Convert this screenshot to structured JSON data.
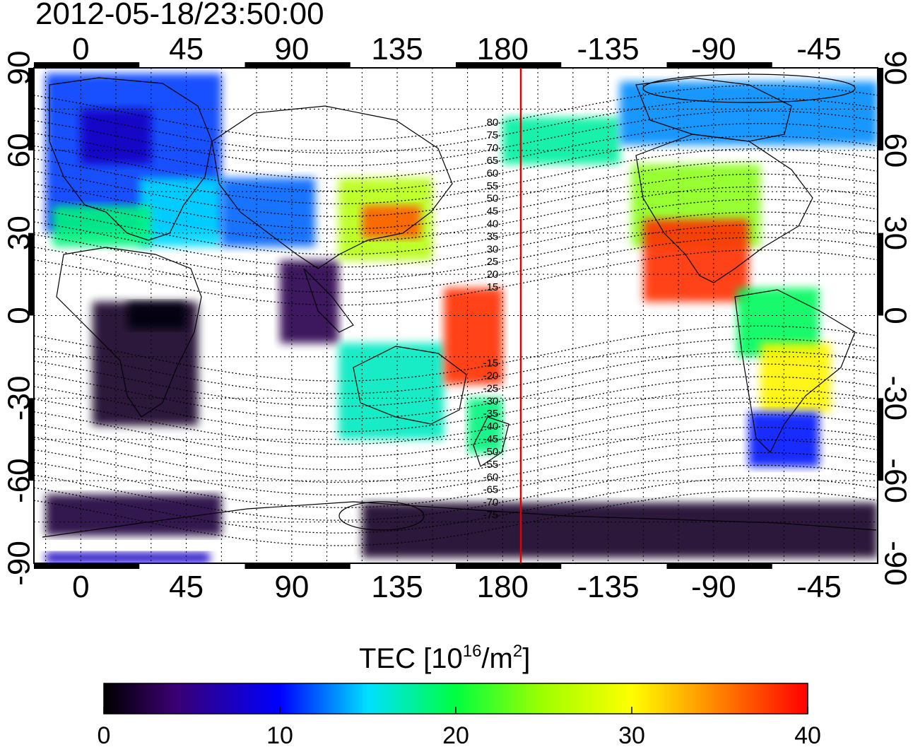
{
  "title": "2012-05-18/23:50:00",
  "lon_labels": [
    "0",
    "45",
    "90",
    "135",
    "180",
    "-135",
    "-90",
    "-45"
  ],
  "lat_labels": [
    "90",
    "60",
    "30",
    "0",
    "-30",
    "-60",
    "-90"
  ],
  "mag_lat_labels_north": [
    "80",
    "75",
    "70",
    "65",
    "60",
    "55",
    "50",
    "45",
    "40",
    "35",
    "30",
    "25",
    "20",
    "15"
  ],
  "mag_lat_labels_south": [
    "-15",
    "-20",
    "-25",
    "-30",
    "-35",
    "-40",
    "-45",
    "-50",
    "-55",
    "-60",
    "-65",
    "-70",
    "-75"
  ],
  "colorbar": {
    "label_main": "TEC  [10",
    "label_exp1": "16",
    "label_mid": "/m",
    "label_exp2": "2",
    "label_end": "]",
    "ticks": [
      "0",
      "10",
      "20",
      "30",
      "40"
    ],
    "min": 0,
    "max": 40
  },
  "colors": {
    "meridian_line": "#e00000",
    "colormap": [
      "#000000",
      "#3a0070",
      "#0000ff",
      "#00e0ff",
      "#00ff40",
      "#ffff00",
      "#ff8000",
      "#ff0000"
    ]
  },
  "map_extent": {
    "lon_range": [
      -20,
      340
    ],
    "lat_range": [
      -90,
      90
    ]
  },
  "tec_regions": [
    {
      "lon": [
        -15,
        60
      ],
      "lat": [
        30,
        88
      ],
      "tec": 13
    },
    {
      "lon": [
        0,
        30
      ],
      "lat": [
        55,
        75
      ],
      "tec": 9
    },
    {
      "lon": [
        25,
        60
      ],
      "lat": [
        25,
        50
      ],
      "tec": 17
    },
    {
      "lon": [
        -12,
        30
      ],
      "lat": [
        25,
        40
      ],
      "tec": 21
    },
    {
      "lon": [
        5,
        50
      ],
      "lat": [
        -40,
        5
      ],
      "tec": 2
    },
    {
      "lon": [
        20,
        45
      ],
      "lat": [
        -5,
        5
      ],
      "tec": 0.5
    },
    {
      "lon": [
        60,
        100
      ],
      "lat": [
        25,
        50
      ],
      "tec": 14
    },
    {
      "lon": [
        85,
        110
      ],
      "lat": [
        -10,
        20
      ],
      "tec": 4
    },
    {
      "lon": [
        110,
        150
      ],
      "lat": [
        20,
        50
      ],
      "tec": 27
    },
    {
      "lon": [
        120,
        145
      ],
      "lat": [
        28,
        40
      ],
      "tec": 36
    },
    {
      "lon": [
        110,
        155
      ],
      "lat": [
        -45,
        -10
      ],
      "tec": 19
    },
    {
      "lon": [
        165,
        180
      ],
      "lat": [
        -50,
        -30
      ],
      "tec": 21
    },
    {
      "lon": [
        155,
        180
      ],
      "lat": [
        -25,
        10
      ],
      "tec": 38
    },
    {
      "lon": [
        180,
        230
      ],
      "lat": [
        55,
        72
      ],
      "tec": 20
    },
    {
      "lon": [
        235,
        290
      ],
      "lat": [
        25,
        55
      ],
      "tec": 26
    },
    {
      "lon": [
        240,
        285
      ],
      "lat": [
        5,
        35
      ],
      "tec": 38
    },
    {
      "lon": [
        280,
        315
      ],
      "lat": [
        -15,
        10
      ],
      "tec": 22
    },
    {
      "lon": [
        290,
        320
      ],
      "lat": [
        -35,
        -10
      ],
      "tec": 29
    },
    {
      "lon": [
        285,
        315
      ],
      "lat": [
        -55,
        -35
      ],
      "tec": 12
    },
    {
      "lon": [
        230,
        340
      ],
      "lat": [
        62,
        85
      ],
      "tec": 15
    },
    {
      "lon": [
        -15,
        60
      ],
      "lat": [
        -80,
        -65
      ],
      "tec": 3
    },
    {
      "lon": [
        120,
        340
      ],
      "lat": [
        -88,
        -68
      ],
      "tec": 2
    },
    {
      "lon": [
        -15,
        55
      ],
      "lat": [
        -90,
        -86
      ],
      "tec": 9
    }
  ]
}
